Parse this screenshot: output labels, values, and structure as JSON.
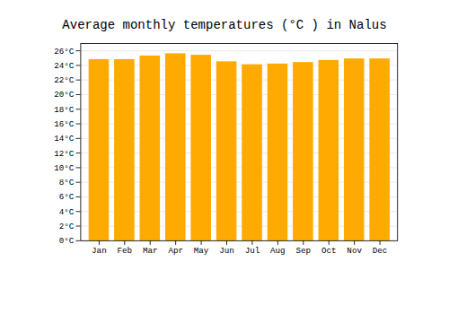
{
  "chart_data": {
    "type": "bar",
    "title": "Average monthly temperatures (°C ) in Nalus",
    "categories": [
      "Jan",
      "Feb",
      "Mar",
      "Apr",
      "May",
      "Jun",
      "Jul",
      "Aug",
      "Sep",
      "Oct",
      "Nov",
      "Dec"
    ],
    "values": [
      24.8,
      24.8,
      25.3,
      25.6,
      25.4,
      24.5,
      24.1,
      24.2,
      24.4,
      24.7,
      24.9,
      24.9
    ],
    "color": "#FFAA00",
    "ylim": [
      0,
      27
    ],
    "yticks": [
      {
        "value": 0,
        "label": "0°C"
      },
      {
        "value": 2,
        "label": "2°C"
      },
      {
        "value": 4,
        "label": "4°C"
      },
      {
        "value": 6,
        "label": "6°C"
      },
      {
        "value": 8,
        "label": "8°C"
      },
      {
        "value": 10,
        "label": "10°C"
      },
      {
        "value": 12,
        "label": "12°C"
      },
      {
        "value": 14,
        "label": "14°C"
      },
      {
        "value": 16,
        "label": "16°C"
      },
      {
        "value": 18,
        "label": "18°C"
      },
      {
        "value": 20,
        "label": "20°C"
      },
      {
        "value": 22,
        "label": "22°C"
      },
      {
        "value": 24,
        "label": "24°C"
      },
      {
        "value": 26,
        "label": "26°C"
      }
    ],
    "grid": true
  }
}
